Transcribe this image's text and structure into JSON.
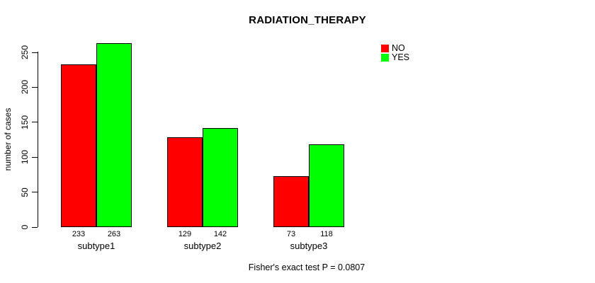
{
  "page": {
    "background": "#ffffff",
    "text_color": "#000000"
  },
  "chart_data": {
    "type": "bar",
    "title": "RADIATION_THERAPY",
    "xlabel": "",
    "ylabel": "number of cases",
    "categories": [
      "subtype1",
      "subtype2",
      "subtype3"
    ],
    "series": [
      {
        "name": "NO",
        "color": "#ff0000",
        "values": [
          233,
          129,
          73
        ]
      },
      {
        "name": "YES",
        "color": "#00ff00",
        "values": [
          263,
          142,
          118
        ]
      }
    ],
    "bar_value_labels": [
      [
        "233",
        "263"
      ],
      [
        "129",
        "142"
      ],
      [
        "73",
        "118"
      ]
    ],
    "ylim": [
      0,
      250
    ],
    "yticks": [
      0,
      50,
      100,
      150,
      200,
      250
    ],
    "grid": false,
    "legend_position": "top-right",
    "annotation": "Fisher's exact test P = 0.0807"
  }
}
